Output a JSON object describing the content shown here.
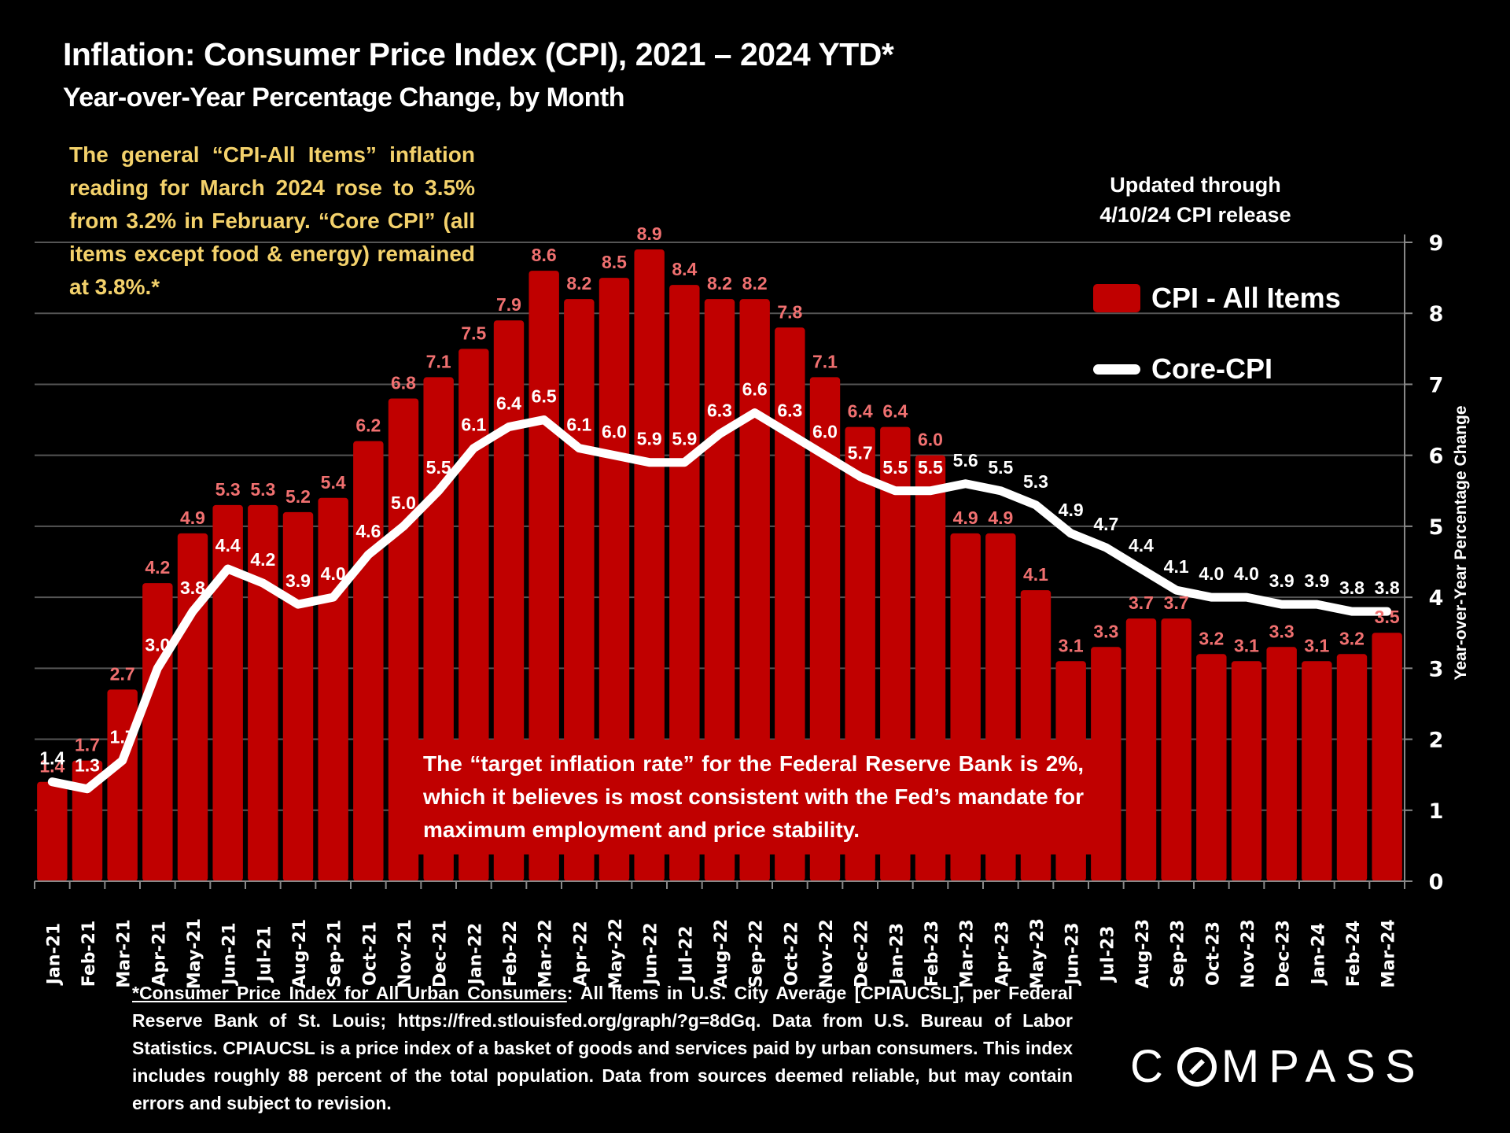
{
  "header": {
    "title": "Inflation: Consumer Price Index (CPI), 2021 – 2024 YTD*",
    "subtitle": "Year-over-Year Percentage Change, by Month"
  },
  "note": "The general “CPI-All Items” inflation reading for March 2024 rose to 3.5% from 3.2% in February. “Core CPI” (all items except food & energy) remained at 3.8%.*",
  "updated": {
    "line1": "Updated through",
    "line2": "4/10/24 CPI release"
  },
  "legend": {
    "cpi_all": "CPI - All Items",
    "core_cpi": "Core-CPI"
  },
  "target_note": "The “target inflation rate” for the Federal Reserve Bank is 2%, which it believes is most consistent with the Fed’s mandate for maximum employment and price stability.",
  "footnote": {
    "link_text": "*Consumer Price Index for All Urban Consumers",
    "rest": ": All Items in U.S. City Average [CPIAUCSL], per Federal Reserve Bank of St. Louis; https://fred.stlouisfed.org/graph/?g=8dGq. Data from U.S. Bureau of Labor Statistics. CPIAUCSL is a price index of a basket of goods and services paid by urban consumers. This index includes roughly 88 percent of the total population. Data from sources deemed reliable, but may contain errors and subject to revision."
  },
  "logo": {
    "text_before": "C",
    "text_after": "MPASS"
  },
  "colors": {
    "bar": "#c00000",
    "bar_label": "#f07070",
    "line": "#ffffff",
    "note_text": "#f3d16b",
    "grid": "#555555"
  },
  "chart_data": {
    "type": "bar",
    "title": "Inflation: Consumer Price Index (CPI), 2021 – 2024 YTD*",
    "subtitle": "Year-over-Year Percentage Change, by Month",
    "xlabel": "",
    "ylabel": "Year-over-Year Percentage Change",
    "ylim": [
      0,
      9
    ],
    "yticks": [
      0,
      1,
      2,
      3,
      4,
      5,
      6,
      7,
      8,
      9
    ],
    "y_axis_side": "right",
    "grid": true,
    "legend_position": "top-right",
    "categories": [
      "Jan-21",
      "Feb-21",
      "Mar-21",
      "Apr-21",
      "May-21",
      "Jun-21",
      "Jul-21",
      "Aug-21",
      "Sep-21",
      "Oct-21",
      "Nov-21",
      "Dec-21",
      "Jan-22",
      "Feb-22",
      "Mar-22",
      "Apr-22",
      "May-22",
      "Jun-22",
      "Jul-22",
      "Aug-22",
      "Sep-22",
      "Oct-22",
      "Nov-22",
      "Dec-22",
      "Jan-23",
      "Feb-23",
      "Mar-23",
      "Apr-23",
      "May-23",
      "Jun-23",
      "Jul-23",
      "Aug-23",
      "Sep-23",
      "Oct-23",
      "Nov-23",
      "Dec-23",
      "Jan-24",
      "Feb-24",
      "Mar-24"
    ],
    "series": [
      {
        "name": "CPI - All Items",
        "type": "bar",
        "values": [
          1.4,
          1.7,
          2.7,
          4.2,
          4.9,
          5.3,
          5.3,
          5.2,
          5.4,
          6.2,
          6.8,
          7.1,
          7.5,
          7.9,
          8.6,
          8.2,
          8.5,
          8.9,
          8.4,
          8.2,
          8.2,
          7.8,
          7.1,
          6.4,
          6.4,
          6.0,
          4.9,
          4.9,
          4.1,
          3.1,
          3.3,
          3.7,
          3.7,
          3.2,
          3.1,
          3.3,
          3.1,
          3.2,
          3.5
        ]
      },
      {
        "name": "Core-CPI",
        "type": "line",
        "values": [
          1.4,
          1.3,
          1.7,
          3.0,
          3.8,
          4.4,
          4.2,
          3.9,
          4.0,
          4.6,
          5.0,
          5.5,
          6.1,
          6.4,
          6.5,
          6.1,
          6.0,
          5.9,
          5.9,
          6.3,
          6.6,
          6.3,
          6.0,
          5.7,
          5.5,
          5.5,
          5.6,
          5.5,
          5.3,
          4.9,
          4.7,
          4.4,
          4.1,
          4.0,
          4.0,
          3.9,
          3.9,
          3.8,
          3.8
        ]
      }
    ]
  }
}
